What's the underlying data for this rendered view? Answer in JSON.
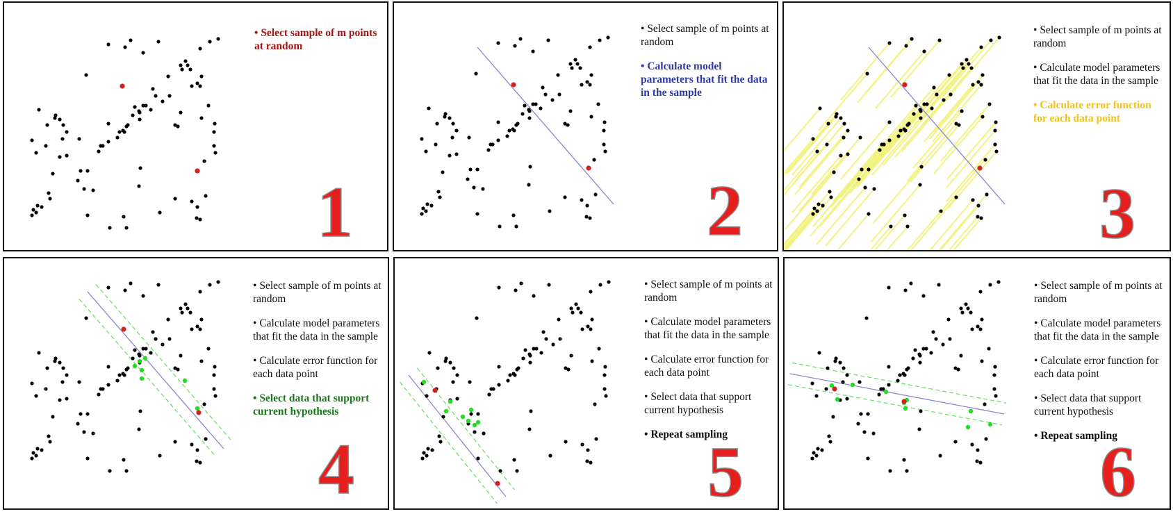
{
  "panels": [
    {
      "number": "1",
      "steps": [
        "Select sample of m points at random"
      ],
      "active_index": 0,
      "active_color": "#a81515",
      "line": false,
      "dashed_band": false,
      "error_lines": false,
      "inliers": []
    },
    {
      "number": "2",
      "steps": [
        "Select sample of m points at random",
        "Calculate model parameters that fit the data in the sample"
      ],
      "active_index": 1,
      "active_color": "#2e3aa6",
      "line": true,
      "dashed_band": false,
      "error_lines": false,
      "inliers": []
    },
    {
      "number": "3",
      "steps": [
        "Select sample of m points at random",
        "Calculate model parameters that fit the data in the sample",
        "Calculate error function for each data point"
      ],
      "active_index": 2,
      "active_color": "#f2c31a",
      "line": true,
      "dashed_band": false,
      "error_lines": true,
      "inliers": []
    },
    {
      "number": "4",
      "steps": [
        "Select sample of m points at random",
        "Calculate model parameters that fit the data in the sample",
        "Calculate error function for each data point",
        "Select data that support current hypothesis"
      ],
      "active_index": 3,
      "active_color": "#1a7a1a",
      "line": true,
      "dashed_band": true,
      "error_lines": false,
      "inliers": [
        [
          175,
          120
        ],
        [
          178,
          133
        ],
        [
          168,
          127
        ],
        [
          183,
          116
        ],
        [
          178,
          145
        ],
        [
          240,
          148
        ],
        [
          258,
          188
        ]
      ]
    },
    {
      "number": "5",
      "steps": [
        "Select sample of m points at random",
        "Calculate model parameters that fit the data in the sample",
        "Calculate error function for each data point",
        "Select data that support current hypothesis",
        "Repeat sampling"
      ],
      "active_index": 4,
      "active_color": "#111111",
      "line": true,
      "dashed_band": true,
      "error_lines": false,
      "inliers": [
        [
          22,
          150
        ],
        [
          60,
          178
        ],
        [
          54,
          192
        ],
        [
          78,
          200
        ],
        [
          86,
          206
        ],
        [
          95,
          212
        ],
        [
          100,
          208
        ],
        [
          90,
          190
        ]
      ]
    },
    {
      "number": "6",
      "steps": [
        "Select sample of m points at random",
        "Calculate model parameters that fit the data in the sample",
        "Calculate error function for each data point",
        "Select data that support current hypothesis",
        "Repeat sampling"
      ],
      "active_index": 4,
      "active_color": "#111111",
      "line": true,
      "dashed_band": true,
      "error_lines": false,
      "inliers": [
        [
          48,
          155
        ],
        [
          78,
          154
        ],
        [
          126,
          164
        ],
        [
          152,
          180
        ],
        [
          156,
          176
        ],
        [
          154,
          188
        ],
        [
          248,
          192
        ],
        [
          276,
          211
        ],
        [
          244,
          215
        ],
        [
          56,
          175
        ]
      ]
    }
  ],
  "colors": {
    "point": "#000000",
    "sample_point": "#d42020",
    "fit_line": "#8a86cc",
    "inlier": "#22dd22",
    "band": "#66dd66",
    "error_line": "#f2f27a"
  }
}
